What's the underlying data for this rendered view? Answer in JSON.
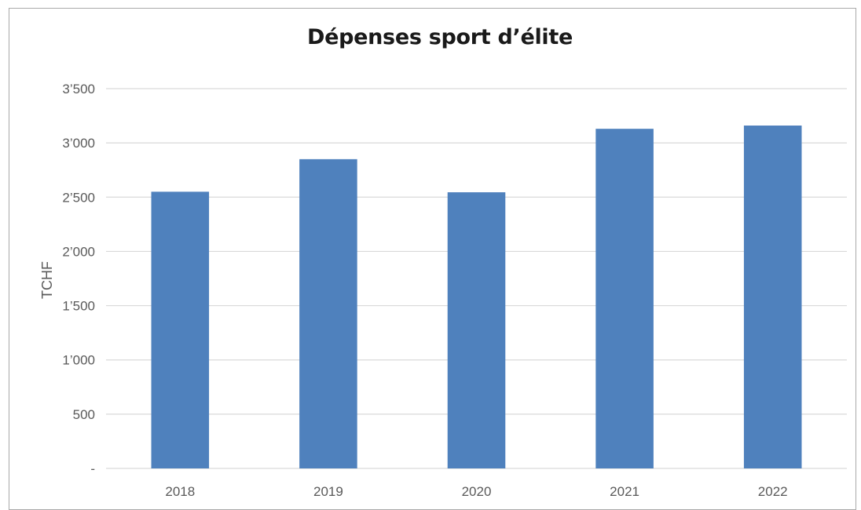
{
  "chart_data": {
    "type": "bar",
    "title": "Dépenses sport d’élite",
    "xlabel": "",
    "ylabel": "TCHF",
    "categories": [
      "2018",
      "2019",
      "2020",
      "2021",
      "2022"
    ],
    "values": [
      2550,
      2850,
      2545,
      3130,
      3160
    ],
    "ylim": [
      0,
      3500
    ],
    "yticks": [
      0,
      500,
      1000,
      1500,
      2000,
      2500,
      3000,
      3500
    ],
    "ytick_labels": [
      "-",
      "500",
      "1’000",
      "1’500",
      "2’000",
      "2’500",
      "3’000",
      "3’500"
    ],
    "grid": true,
    "bar_color": "#4f81bd",
    "grid_color": "#d9d9d9"
  }
}
